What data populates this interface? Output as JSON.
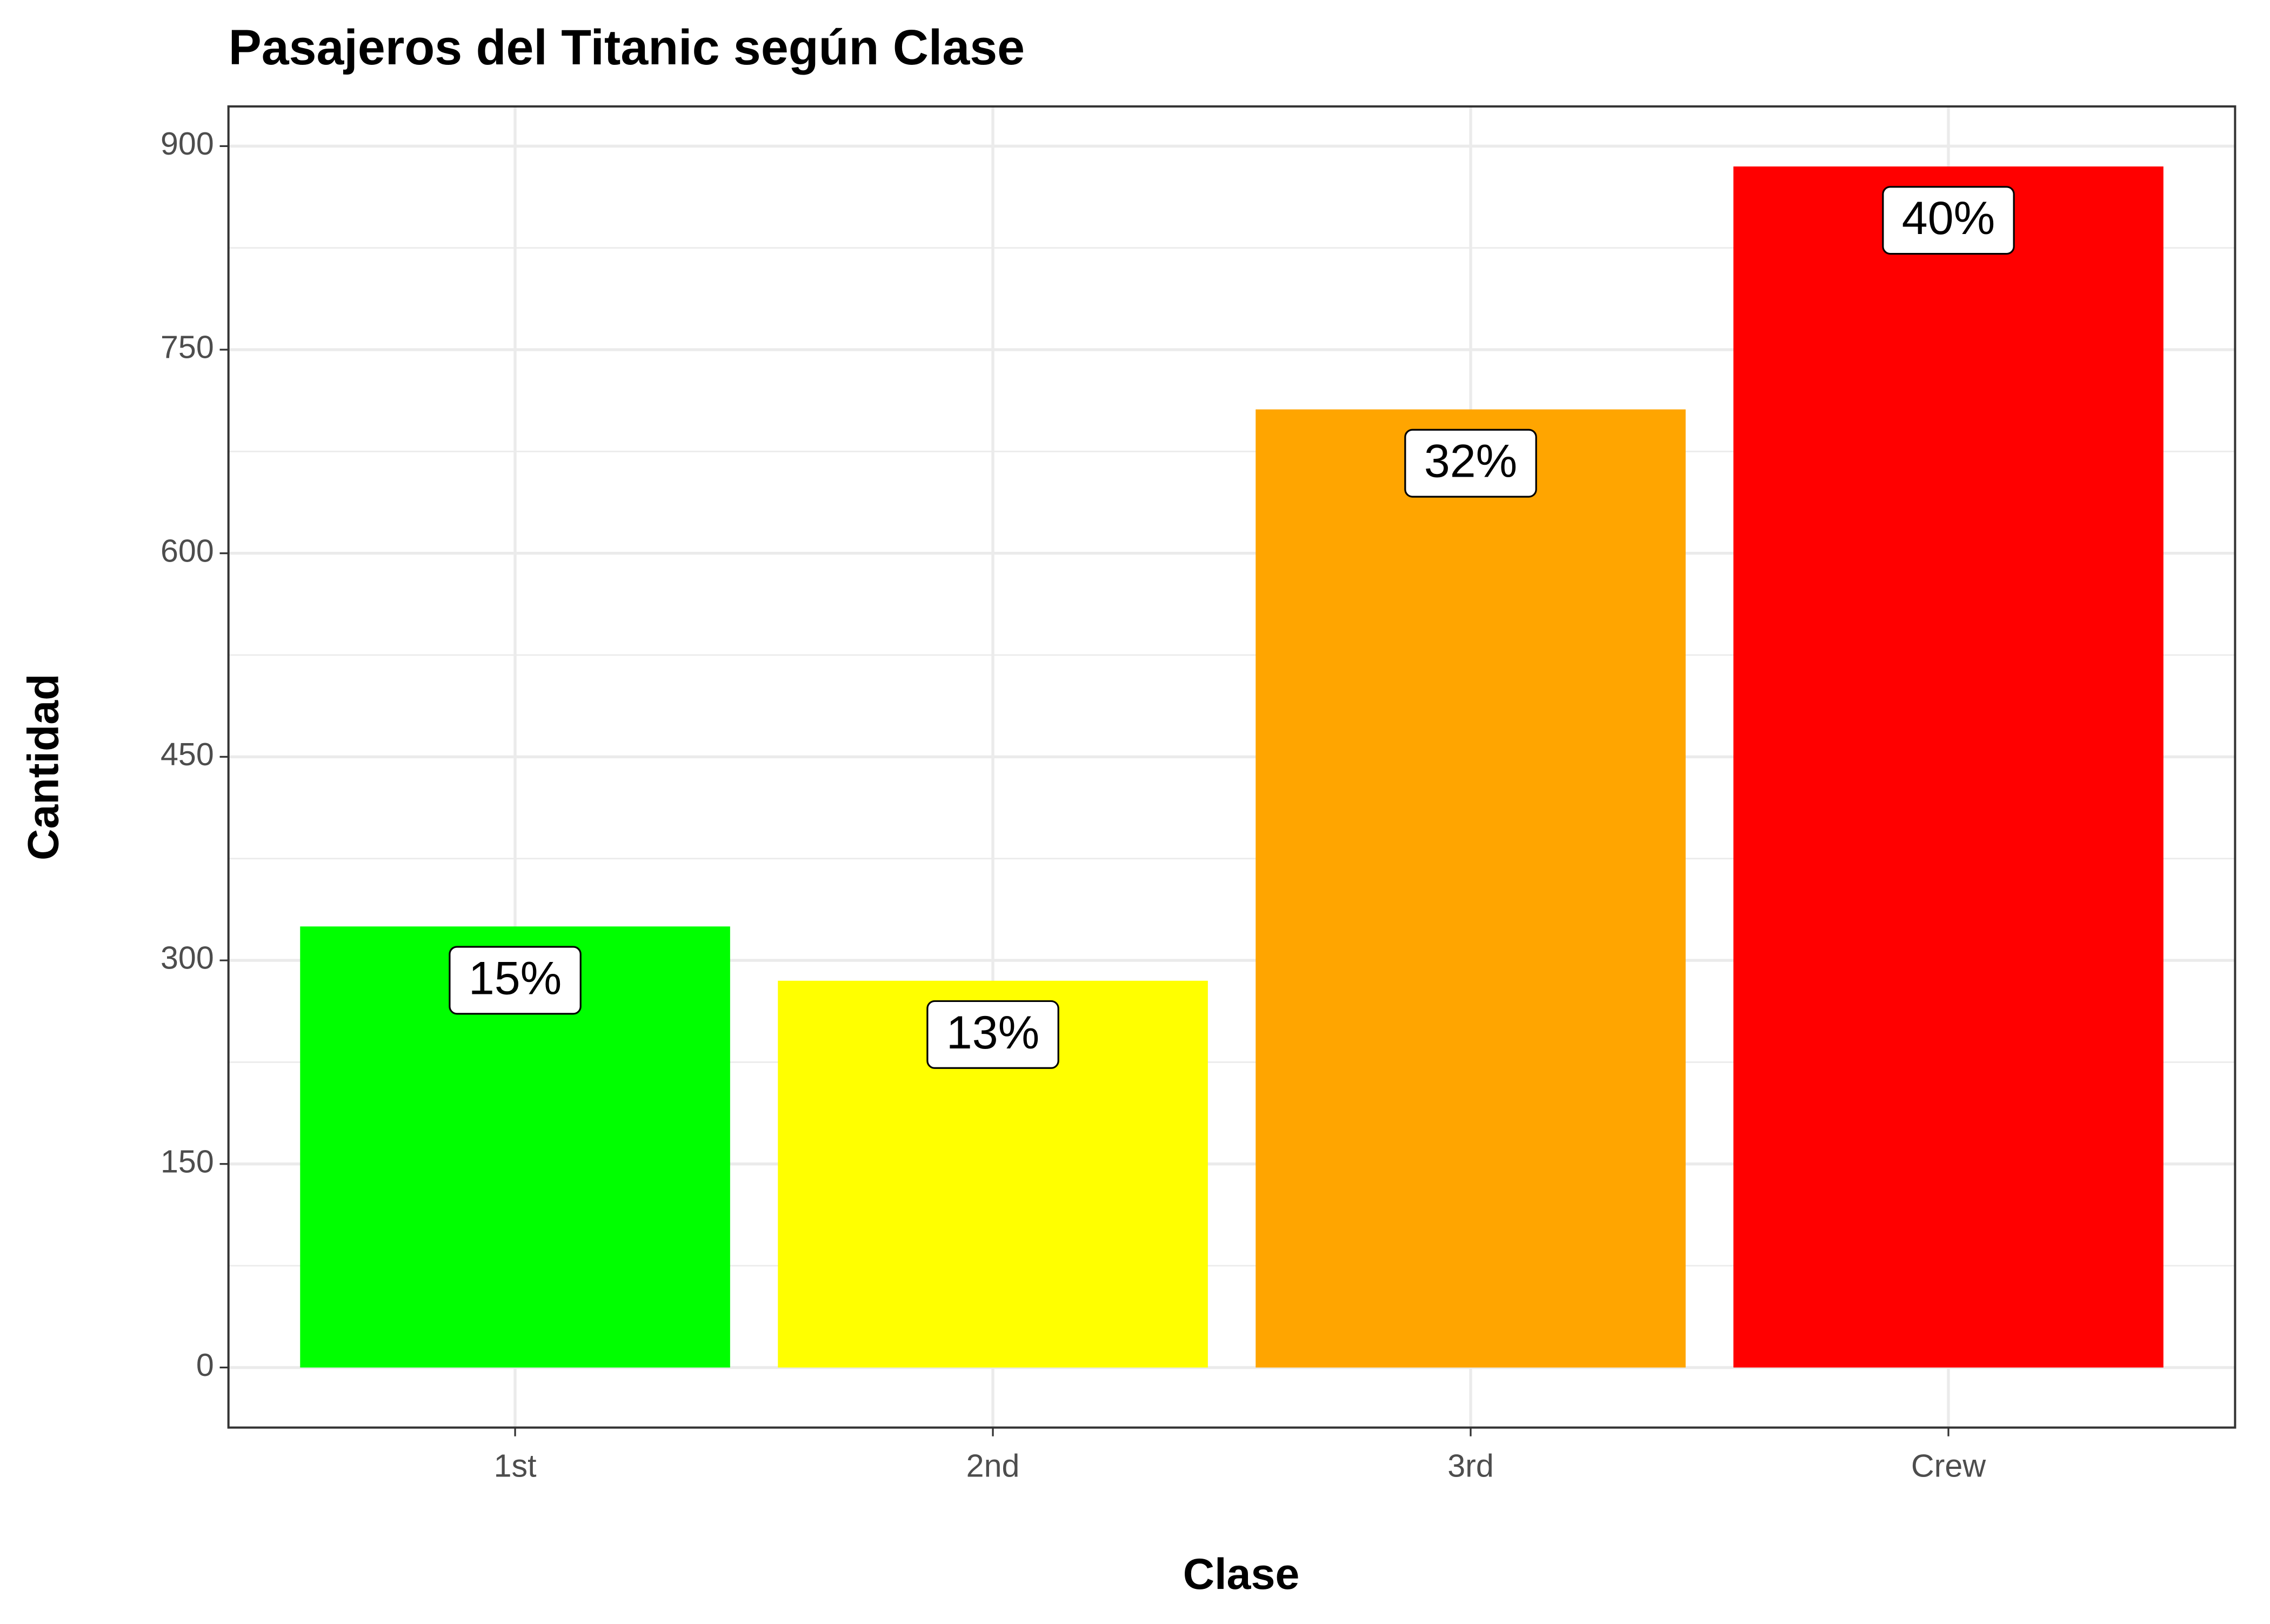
{
  "chart_data": {
    "type": "bar",
    "title": "Pasajeros del Titanic según Clase",
    "x_label": "Clase",
    "y_label": "Cantidad",
    "categories": [
      "1st",
      "2nd",
      "3rd",
      "Crew"
    ],
    "values": [
      325,
      285,
      706,
      885
    ],
    "colors": [
      "#00ff00",
      "#ffff00",
      "#ffa500",
      "#ff0000"
    ],
    "percentages": {
      "values": [
        15,
        13,
        32,
        40
      ],
      "value_labels": [
        "15%",
        "13%",
        "32%",
        "40%"
      ]
    },
    "ylim": [
      -44.25,
      929.25
    ],
    "yticks": [
      0,
      150,
      300,
      450,
      600,
      750,
      900
    ],
    "yticks_minor": [
      75,
      225,
      375,
      525,
      675,
      825
    ],
    "grid": true
  }
}
